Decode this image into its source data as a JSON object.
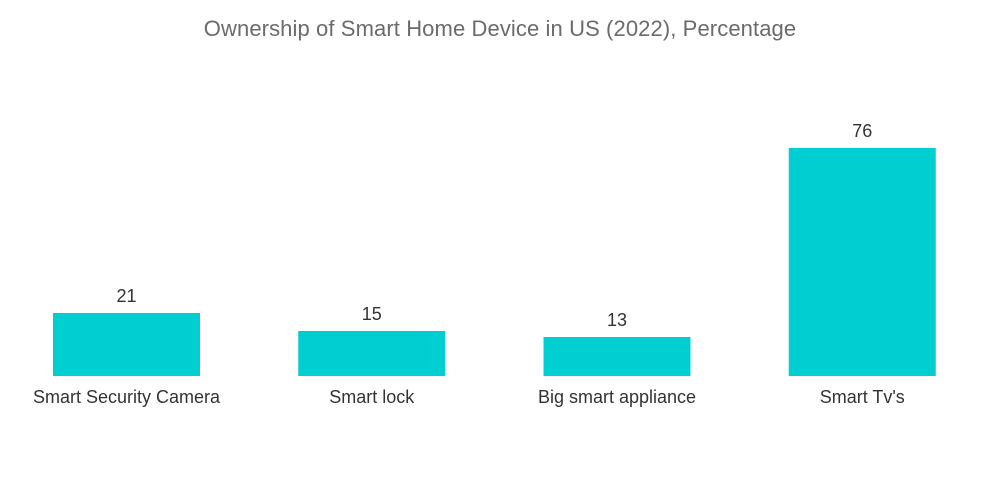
{
  "chart_data": {
    "type": "bar",
    "title": "Ownership of Smart Home Device in US (2022), Percentage",
    "categories": [
      "Smart Security Camera",
      "Smart lock",
      "Big smart appliance",
      "Smart Tv's"
    ],
    "values": [
      21,
      15,
      13,
      76
    ],
    "xlabel": "",
    "ylabel": "",
    "ylim": [
      0,
      80
    ],
    "grid": false,
    "legend": "none",
    "bar_color": "#00CED1"
  }
}
